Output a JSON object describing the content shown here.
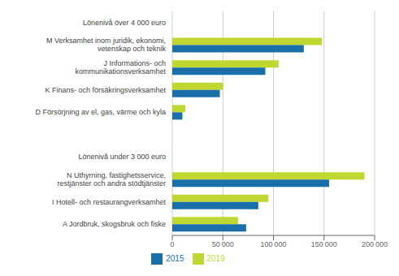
{
  "chart_data": {
    "type": "bar",
    "orientation": "horizontal",
    "categories": [
      "Lönenivå över 4 000 euro",
      "M Verksamhet inom juridik, ekonomi,\nvetenskap och teknik",
      "J Informations- och\nkommunikationsverksamhet",
      "K Finans- och försäkringsverksamhet",
      "D Försörjning av el, gas, värme och kyla",
      null,
      "Lönenivå under 3 000 euro",
      "N Uthyrning, fastighetsservice,\nrestjänster och andra stödtjänster",
      "I Hotell- och restaurangverksamhet",
      "A Jordbruk, skogsbruk och fiske"
    ],
    "series": [
      {
        "name": "2019",
        "color": "#bfd730",
        "values": [
          null,
          148000,
          105000,
          50000,
          13000,
          null,
          null,
          190000,
          95000,
          65000
        ]
      },
      {
        "name": "2015",
        "color": "#1a6fa8",
        "values": [
          null,
          130000,
          92000,
          47000,
          10000,
          null,
          null,
          155000,
          85000,
          73000
        ]
      }
    ],
    "xlim": [
      0,
      200000
    ],
    "xticks": [
      0,
      {
        "value": 50000,
        "label": "50 000"
      },
      {
        "value": 100000,
        "label": "100 000"
      },
      {
        "value": 150000,
        "label": "150 000"
      },
      {
        "value": 200000,
        "label": "200 000"
      }
    ],
    "grid": true,
    "legend": "bottom"
  }
}
